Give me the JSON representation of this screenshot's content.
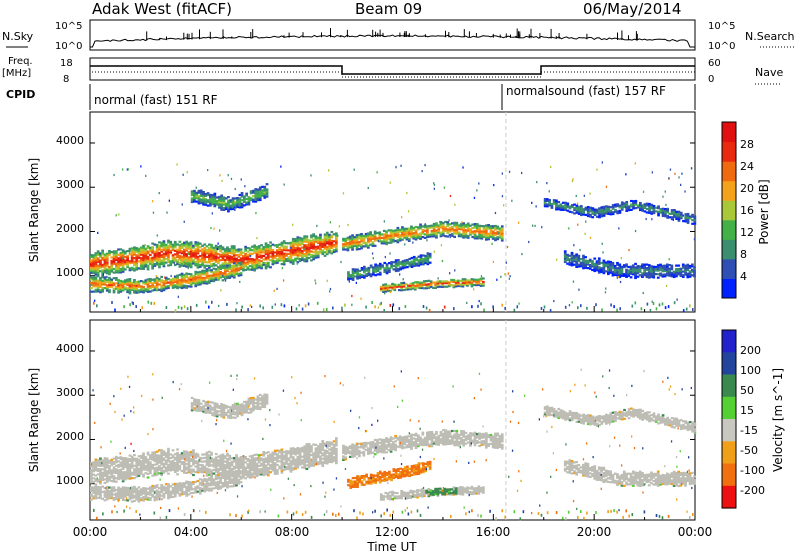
{
  "header": {
    "station": "Adak West (fitACF)",
    "beam": "Beam 09",
    "date": "06/May/2014"
  },
  "nsky": {
    "label": "N.Sky",
    "tick_top": "10^5",
    "tick_bottom": "10^0",
    "right_label": "N.Search",
    "right_tick_top": "10^5",
    "right_tick_bottom": "10^0"
  },
  "freq": {
    "label_line1": "Freq.",
    "label_line2": "[MHz]",
    "tick_top": "18",
    "tick_bottom": "8",
    "right_label": "Nave",
    "right_tick_top": "60",
    "right_tick_bottom": "0"
  },
  "cpid": {
    "label": "CPID",
    "mode1": "normal (fast) 151 RF",
    "mode2": "normalsound (fast) 157 RF"
  },
  "colors": {
    "power_scale": [
      "#0022ff",
      "#2f4fb4",
      "#3b8f6e",
      "#44b048",
      "#a8c83a",
      "#f4a21b",
      "#f06a10",
      "#ea2a10",
      "#e01010"
    ],
    "velocity_scale": [
      "#2222cc",
      "#22449c",
      "#3a8a50",
      "#55d033",
      "#c8c8c0",
      "#f0a018",
      "#f07010",
      "#f04010",
      "#ee1010"
    ],
    "ground_scatter": "#bdbdb5"
  },
  "chart_data": [
    {
      "type": "heatmap",
      "name": "power",
      "ylabel": "Slant Range [km]",
      "yticks": [
        "1000",
        "2000",
        "3000",
        "4000"
      ],
      "ylim": [
        180,
        4700
      ],
      "x_ticks": [
        "00:00",
        "04:00",
        "08:00",
        "12:00",
        "16:00",
        "20:00",
        "00:00"
      ],
      "xlim_hours": [
        0,
        24
      ],
      "colorbar_label": "Power [dB]",
      "colorbar_ticks": [
        "4",
        "8",
        "12",
        "16",
        "20",
        "24",
        "28"
      ],
      "colorbar_range": [
        0,
        32
      ],
      "bands": [
        {
          "t": [
            0,
            1.5,
            3,
            4.5,
            6,
            8,
            9.8
          ],
          "r": [
            1250,
            1350,
            1500,
            1450,
            1350,
            1550,
            1750
          ],
          "w": 500,
          "level": 29
        },
        {
          "t": [
            0,
            2,
            4,
            6
          ],
          "r": [
            800,
            750,
            900,
            1150
          ],
          "w": 300,
          "level": 25
        },
        {
          "t": [
            4,
            5.5,
            7
          ],
          "r": [
            2800,
            2600,
            2900
          ],
          "w": 280,
          "level": 14
        },
        {
          "t": [
            10,
            12,
            14,
            16.3
          ],
          "r": [
            1700,
            1900,
            2050,
            1950
          ],
          "w": 300,
          "level": 24
        },
        {
          "t": [
            10.2,
            12,
            13.5
          ],
          "r": [
            1000,
            1200,
            1400
          ],
          "w": 220,
          "level": 12
        },
        {
          "t": [
            11.5,
            13.5,
            15.6
          ],
          "r": [
            700,
            800,
            850
          ],
          "w": 160,
          "level": 27
        },
        {
          "t": [
            18,
            20,
            21.5,
            24
          ],
          "r": [
            2650,
            2400,
            2600,
            2250
          ],
          "w": 200,
          "level": 10
        },
        {
          "t": [
            18.8,
            21,
            24
          ],
          "r": [
            1400,
            1100,
            1100
          ],
          "w": 280,
          "level": 9
        }
      ]
    },
    {
      "type": "heatmap",
      "name": "velocity",
      "ylabel": "Slant Range [km]",
      "yticks": [
        "1000",
        "2000",
        "3000",
        "4000"
      ],
      "ylim": [
        180,
        4700
      ],
      "x_ticks": [
        "00:00",
        "04:00",
        "08:00",
        "12:00",
        "16:00",
        "20:00",
        "00:00"
      ],
      "xlim_hours": [
        0,
        24
      ],
      "xlabel": "Time UT",
      "colorbar_label": "Velocity [m s^-1]",
      "colorbar_ticks": [
        "200",
        "100",
        "50",
        "15",
        "-15",
        "-50",
        "-100",
        "-200"
      ],
      "bands": [
        {
          "t": [
            0,
            1.5,
            3,
            4.5,
            6,
            8,
            9.8
          ],
          "r": [
            1250,
            1350,
            1500,
            1450,
            1350,
            1550,
            1750
          ],
          "w": 500,
          "v": 0
        },
        {
          "t": [
            0,
            2,
            4,
            6
          ],
          "r": [
            800,
            750,
            900,
            1150
          ],
          "w": 300,
          "v": 0
        },
        {
          "t": [
            4,
            5.5,
            7
          ],
          "r": [
            2800,
            2600,
            2900
          ],
          "w": 280,
          "v": 0
        },
        {
          "t": [
            10,
            12,
            14,
            16.3
          ],
          "r": [
            1700,
            1900,
            2050,
            1950
          ],
          "w": 300,
          "v": 0
        },
        {
          "t": [
            10.2,
            12,
            13.5
          ],
          "r": [
            1000,
            1200,
            1400
          ],
          "w": 220,
          "v": -80
        },
        {
          "t": [
            11.5,
            13.5,
            15.6
          ],
          "r": [
            700,
            800,
            850
          ],
          "w": 160,
          "v": 0
        },
        {
          "t": [
            13.3,
            14.5
          ],
          "r": [
            800,
            830
          ],
          "w": 120,
          "v": 40
        },
        {
          "t": [
            18,
            20,
            21.5,
            24
          ],
          "r": [
            2650,
            2400,
            2600,
            2250
          ],
          "w": 200,
          "v": 0
        },
        {
          "t": [
            18.8,
            21,
            24
          ],
          "r": [
            1400,
            1100,
            1100
          ],
          "w": 280,
          "v": 0
        }
      ]
    }
  ]
}
